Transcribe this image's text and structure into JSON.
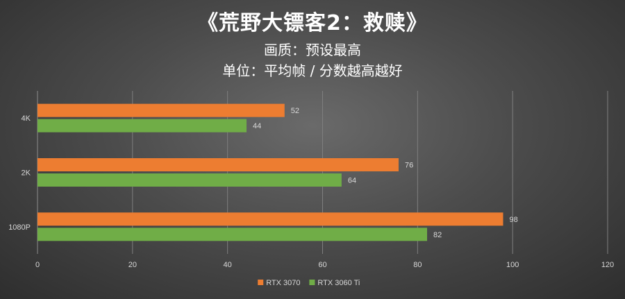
{
  "chart_data": {
    "type": "bar",
    "orientation": "horizontal",
    "title": "《荒野大镖客2：救赎》",
    "subtitle_lines": [
      "画质：预设最高",
      "单位：平均帧 / 分数越高越好"
    ],
    "categories": [
      "4K",
      "2K",
      "1080P"
    ],
    "series": [
      {
        "name": "RTX 3070",
        "color": "#ed7d31",
        "values": [
          52,
          76,
          98
        ]
      },
      {
        "name": "RTX 3060 Ti",
        "color": "#70ad47",
        "values": [
          44,
          64,
          82
        ]
      }
    ],
    "xlim": [
      0,
      120
    ],
    "x_ticks": [
      0,
      20,
      40,
      60,
      80,
      100,
      120
    ],
    "x_tick_labels": [
      "0",
      "20",
      "40",
      "60",
      "80",
      "100",
      "120"
    ],
    "grid": "vertical",
    "legend": "bottom-center"
  }
}
